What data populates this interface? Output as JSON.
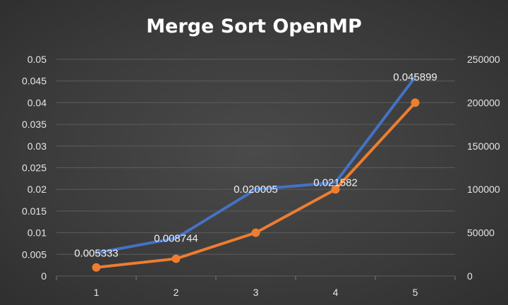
{
  "chart_data": {
    "type": "line",
    "title": "Merge Sort OpenMP",
    "x": [
      1,
      2,
      3,
      4,
      5
    ],
    "x_tick_labels": [
      "1",
      "2",
      "3",
      "4",
      "5"
    ],
    "y_left": {
      "ylim": [
        0,
        0.05
      ],
      "ticks": [
        0,
        0.005,
        0.01,
        0.015,
        0.02,
        0.025,
        0.03,
        0.035,
        0.04,
        0.045,
        0.05
      ],
      "tick_labels": [
        "0",
        "0.005",
        "0.01",
        "0.015",
        "0.02",
        "0.025",
        "0.03",
        "0.035",
        "0.04",
        "0.045",
        "0.05"
      ]
    },
    "y_right": {
      "ylim": [
        0,
        250000
      ],
      "ticks": [
        0,
        50000,
        100000,
        150000,
        200000,
        250000
      ],
      "tick_labels": [
        "0",
        "50000",
        "100000",
        "150000",
        "200000",
        "250000"
      ]
    },
    "series": [
      {
        "axis": "left",
        "color": "#4472c4",
        "values": [
          0.005333,
          0.008744,
          0.020005,
          0.021582,
          0.045899
        ],
        "data_labels": [
          "0.005333",
          "0.008744",
          "0.020005",
          "0.021582",
          "0.045899"
        ],
        "markers": false
      },
      {
        "axis": "right",
        "color": "#ed7d31",
        "values": [
          10000,
          20000,
          50000,
          100000,
          200000
        ],
        "markers": true
      }
    ],
    "grid": true,
    "legend": "none"
  }
}
